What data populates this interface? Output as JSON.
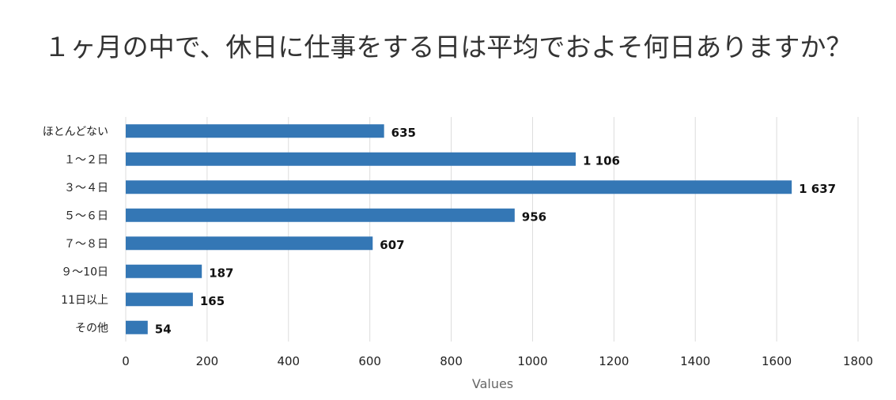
{
  "chart_data": {
    "type": "bar",
    "orientation": "horizontal",
    "title": "１ヶ月の中で、休日に仕事をする日は平均でおよそ何日ありますか？",
    "categories": [
      "ほとんどない",
      "１～２日",
      "３～４日",
      "５～６日",
      "７～８日",
      "９～10日",
      "11日以上",
      "その他"
    ],
    "values": [
      635,
      1106,
      1637,
      956,
      607,
      187,
      165,
      54
    ],
    "value_labels": [
      "635",
      "1 106",
      "1 637",
      "956",
      "607",
      "187",
      "165",
      "54"
    ],
    "xlabel": "Values",
    "ylabel": "",
    "xlim": [
      0,
      1800
    ],
    "x_ticks": [
      0,
      200,
      400,
      600,
      800,
      1000,
      1200,
      1400,
      1600,
      1800
    ],
    "grid": "vertical",
    "legend": "none",
    "bar_color": "#3477b5",
    "grid_color": "#dcdcdc"
  }
}
